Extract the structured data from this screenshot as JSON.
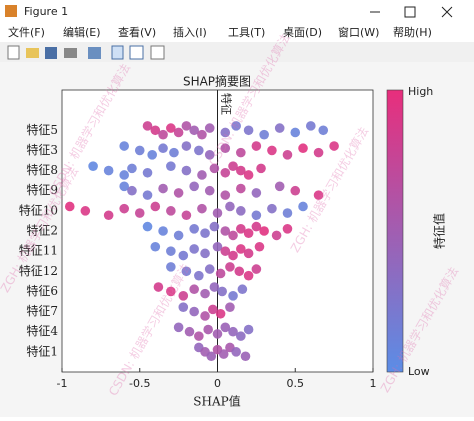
{
  "window": {
    "title": "Figure 1",
    "menus": [
      "文件(F)",
      "编辑(E)",
      "查看(V)",
      "插入(I)",
      "工具(T)",
      "桌面(D)",
      "窗口(W)",
      "帮助(H)"
    ]
  },
  "watermarks": [
    "ZGH: 机器学习和优化算法",
    "CSDN: 机器学习和优化算法"
  ],
  "chart_data": {
    "type": "scatter",
    "title": "SHAP摘要图",
    "x_label": "SHAP值",
    "y_label": "特征",
    "xlim": [
      -1,
      1
    ],
    "xticks": [
      -1,
      -0.5,
      0,
      0.5,
      1
    ],
    "ylim": [
      0,
      14
    ],
    "colorbar": {
      "label": "特征值",
      "high": "High",
      "low": "Low",
      "colors": [
        "#5b8de6",
        "#e82e7c"
      ]
    },
    "series": [
      {
        "name": "特征5",
        "x": [
          -0.45,
          -0.4,
          -0.35,
          -0.3,
          -0.25,
          -0.2,
          -0.15,
          -0.1,
          -0.05,
          0.05,
          0.12,
          0.2,
          0.3,
          0.4,
          0.5,
          0.6,
          0.68
        ],
        "feature_values": [
          0.8,
          0.85,
          0.7,
          0.9,
          0.75,
          0.6,
          0.5,
          0.6,
          0.5,
          0.3,
          0.2,
          0.25,
          0.15,
          0.3,
          0.1,
          0.2,
          0.15
        ]
      },
      {
        "name": "特征3",
        "x": [
          -0.6,
          -0.5,
          -0.42,
          -0.35,
          -0.28,
          -0.2,
          -0.12,
          -0.05,
          0.05,
          0.15,
          0.25,
          0.35,
          0.45,
          0.55,
          0.65,
          0.75
        ],
        "feature_values": [
          0.1,
          0.15,
          0.1,
          0.2,
          0.15,
          0.3,
          0.25,
          0.4,
          0.6,
          0.7,
          0.85,
          0.9,
          0.8,
          0.95,
          0.85,
          0.9
        ]
      },
      {
        "name": "特征8",
        "x": [
          -0.8,
          -0.7,
          -0.6,
          -0.55,
          -0.45,
          -0.3,
          -0.2,
          -0.1,
          -0.02,
          0.05,
          0.1,
          0.15,
          0.2,
          0.28
        ],
        "feature_values": [
          0.05,
          0.1,
          0.1,
          0.15,
          0.2,
          0.2,
          0.3,
          0.5,
          0.6,
          0.75,
          0.8,
          0.85,
          0.9,
          0.85
        ]
      },
      {
        "name": "特征9",
        "x": [
          -0.6,
          -0.55,
          -0.45,
          -0.35,
          -0.25,
          -0.15,
          -0.05,
          0.05,
          0.15,
          0.25,
          0.4,
          0.5,
          0.65
        ],
        "feature_values": [
          0.1,
          0.3,
          0.2,
          0.5,
          0.6,
          0.4,
          0.5,
          0.6,
          0.7,
          0.4,
          0.5,
          0.8,
          0.9
        ]
      },
      {
        "name": "特征10",
        "x": [
          -0.95,
          -0.85,
          -0.7,
          -0.6,
          -0.5,
          -0.4,
          -0.3,
          -0.2,
          -0.1,
          0,
          0.08,
          0.15,
          0.25,
          0.35,
          0.45,
          0.55
        ],
        "feature_values": [
          0.95,
          0.9,
          0.85,
          0.8,
          0.75,
          0.8,
          0.7,
          0.75,
          0.6,
          0.5,
          0.4,
          0.35,
          0.2,
          0.3,
          0.15,
          0.1
        ]
      },
      {
        "name": "特征2",
        "x": [
          -0.45,
          -0.35,
          -0.25,
          -0.15,
          -0.08,
          -0.02,
          0.05,
          0.1,
          0.15,
          0.2,
          0.25,
          0.3,
          0.38,
          0.45
        ],
        "feature_values": [
          0.05,
          0.1,
          0.15,
          0.2,
          0.25,
          0.3,
          0.6,
          0.7,
          0.85,
          0.9,
          0.85,
          0.95,
          0.8,
          0.9
        ]
      },
      {
        "name": "特征11",
        "x": [
          -0.4,
          -0.3,
          -0.22,
          -0.15,
          -0.08,
          0,
          0.05,
          0.1,
          0.15,
          0.2,
          0.27
        ],
        "feature_values": [
          0.1,
          0.15,
          0.2,
          0.25,
          0.3,
          0.4,
          0.8,
          0.85,
          0.9,
          0.85,
          0.9
        ]
      },
      {
        "name": "特征12",
        "x": [
          -0.3,
          -0.2,
          -0.12,
          -0.05,
          0.02,
          0.08,
          0.14,
          0.2,
          0.25
        ],
        "feature_values": [
          0.15,
          0.2,
          0.25,
          0.3,
          0.7,
          0.8,
          0.85,
          0.9,
          0.8
        ]
      },
      {
        "name": "特征6",
        "x": [
          -0.38,
          -0.3,
          -0.22,
          -0.15,
          -0.08,
          -0.02,
          0.03,
          0.1,
          0.16
        ],
        "feature_values": [
          0.85,
          0.9,
          0.8,
          0.6,
          0.5,
          0.4,
          0.3,
          0.2,
          0.25
        ]
      },
      {
        "name": "特征7",
        "x": [
          -0.22,
          -0.15,
          -0.08,
          -0.03,
          0.02,
          0.08
        ],
        "feature_values": [
          0.3,
          0.4,
          0.6,
          0.8,
          0.9,
          0.5
        ]
      },
      {
        "name": "特征4",
        "x": [
          -0.25,
          -0.18,
          -0.12,
          -0.06,
          0,
          0.05,
          0.1,
          0.15,
          0.2
        ],
        "feature_values": [
          0.4,
          0.5,
          0.6,
          0.55,
          0.5,
          0.45,
          0.4,
          0.35,
          0.3
        ]
      },
      {
        "name": "特征1",
        "x": [
          -0.12,
          -0.08,
          -0.04,
          0,
          0.04,
          0.08,
          0.12,
          0.18
        ],
        "feature_values": [
          0.4,
          0.5,
          0.45,
          0.6,
          0.5,
          0.55,
          0.4,
          0.45
        ]
      }
    ]
  }
}
